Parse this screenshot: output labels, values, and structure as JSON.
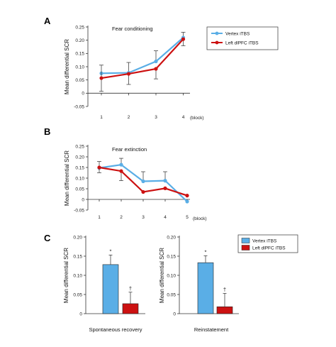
{
  "colors": {
    "vertex": "#5aaee6",
    "dlpfc": "#cc1111",
    "bar_outline": "#222222",
    "error": "#444444"
  },
  "charts": [
    {
      "id": "A",
      "type": "line",
      "panel_letter": "A",
      "title": "Fear conditioning",
      "ylabel": "Mean differential SCR",
      "xlabel": "(block)",
      "x": [
        1,
        2,
        3,
        4
      ],
      "x_tick_labels": [
        "1",
        "2",
        "3",
        "4"
      ],
      "ylim": [
        -0.05,
        0.25
      ],
      "y_ticks": [
        -0.05,
        0,
        0.05,
        0.1,
        0.15,
        0.2,
        0.25
      ],
      "y_tick_labels": [
        "-0.05",
        "0",
        "0.05",
        "0.10",
        "0.15",
        "0.20",
        "0.25"
      ],
      "legend": {
        "placement": "top-right",
        "entries": [
          "Vertex iTBS",
          "Left dlPFC iTBS"
        ]
      },
      "series": [
        {
          "name": "Vertex iTBS",
          "color": "#5aaee6",
          "values": [
            0.075,
            0.077,
            0.12,
            0.21
          ],
          "err_up": [
            0,
            0.039,
            0.04,
            0.02
          ],
          "err_down": [
            0,
            0,
            0,
            0
          ]
        },
        {
          "name": "Left dlPFC iTBS",
          "color": "#cc1111",
          "values": [
            0.057,
            0.073,
            0.092,
            0.204
          ],
          "err_up": [
            0.049,
            0,
            0,
            0
          ],
          "err_down": [
            0.05,
            0.04,
            0.038,
            0.025
          ]
        }
      ]
    },
    {
      "id": "B",
      "type": "line",
      "panel_letter": "B",
      "title": "Fear extinction",
      "ylabel": "Mean differential SCR",
      "xlabel": "(block)",
      "x": [
        1,
        2,
        3,
        4,
        5
      ],
      "x_tick_labels": [
        "1",
        "2",
        "3",
        "4",
        "5"
      ],
      "ylim": [
        -0.05,
        0.25
      ],
      "y_ticks": [
        -0.05,
        0,
        0.05,
        0.1,
        0.15,
        0.2,
        0.25
      ],
      "y_tick_labels": [
        "-0.05",
        "0",
        "0.05",
        "0.10",
        "0.15",
        "0.20",
        "0.25"
      ],
      "series": [
        {
          "name": "Vertex iTBS",
          "color": "#5aaee6",
          "values": [
            0.148,
            0.163,
            0.085,
            0.088,
            -0.01
          ],
          "err_up": [
            0.03,
            0.03,
            0.045,
            0.042,
            0
          ],
          "err_down": [
            0,
            0,
            0,
            0,
            0
          ]
        },
        {
          "name": "Left dlPFC iTBS",
          "color": "#cc1111",
          "values": [
            0.15,
            0.133,
            0.035,
            0.052,
            0.018
          ],
          "err_up": [
            0,
            0,
            0,
            0,
            0
          ],
          "err_down": [
            0.025,
            0.045,
            0,
            0,
            0
          ]
        }
      ]
    },
    {
      "id": "C1",
      "type": "bar",
      "panel_letter": "C",
      "xlabel": "Spontaneous recovery",
      "ylabel": "Mean differential SCR",
      "ylim": [
        0,
        0.2
      ],
      "y_ticks": [
        0,
        0.05,
        0.1,
        0.15,
        0.2
      ],
      "y_tick_labels": [
        "0",
        "0.05",
        "0.10",
        "0.15",
        "0.20"
      ],
      "series": [
        {
          "name": "Vertex iTBS",
          "color": "#5aaee6",
          "value": 0.128,
          "err": 0.025,
          "mark": "*"
        },
        {
          "name": "Left dlPFC iTBS",
          "color": "#cc1111",
          "value": 0.026,
          "err": 0.03,
          "mark": "†"
        }
      ]
    },
    {
      "id": "C2",
      "type": "bar",
      "xlabel": "Reinstatement",
      "ylabel": "Mean differential SCR",
      "ylim": [
        0,
        0.2
      ],
      "y_ticks": [
        0,
        0.05,
        0.1,
        0.15,
        0.2
      ],
      "y_tick_labels": [
        "0",
        "0.05",
        "0.10",
        "0.15",
        "0.20"
      ],
      "legend": {
        "placement": "top-right",
        "entries": [
          "Vertex iTBS",
          "Left dlPFC iTBS"
        ]
      },
      "series": [
        {
          "name": "Vertex iTBS",
          "color": "#5aaee6",
          "value": 0.133,
          "err": 0.018,
          "mark": "*"
        },
        {
          "name": "Left dlPFC iTBS",
          "color": "#cc1111",
          "value": 0.018,
          "err": 0.035,
          "mark": "†"
        }
      ]
    }
  ]
}
